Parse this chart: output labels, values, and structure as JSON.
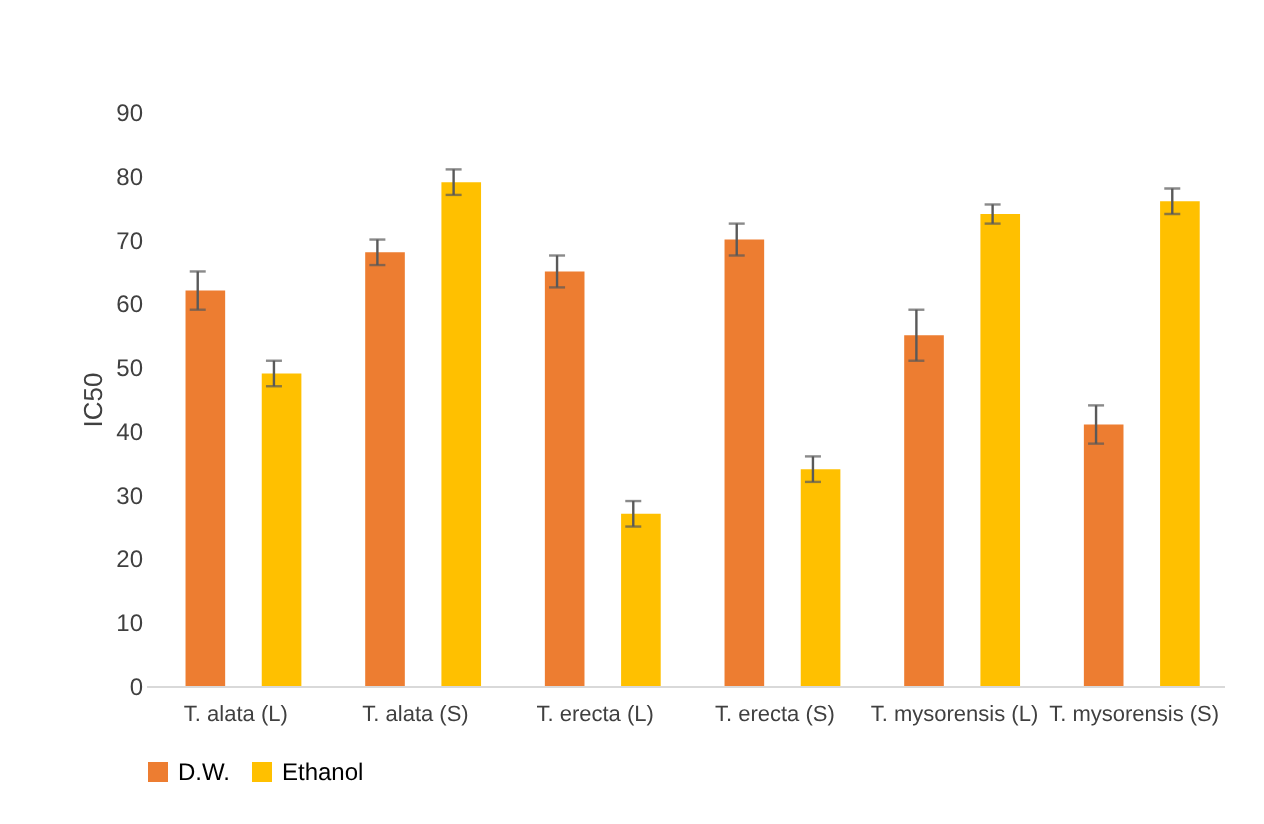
{
  "chart_data": {
    "type": "bar",
    "ylabel": "IC50",
    "categories": [
      "T. alata (L)",
      "T. alata (S)",
      "T. erecta (L)",
      "T. erecta (S)",
      "T. mysorensis (L)",
      "T. mysorensis (S)"
    ],
    "series": [
      {
        "name": "D.W.",
        "color": "#ed7d31",
        "values": [
          62,
          68,
          65,
          70,
          55,
          41
        ],
        "errors": [
          3,
          2,
          2.5,
          2.5,
          4,
          3
        ]
      },
      {
        "name": "Ethanol",
        "color": "#ffc000",
        "values": [
          49,
          79,
          27,
          34,
          74,
          76
        ],
        "errors": [
          2,
          2,
          2,
          2,
          1.5,
          2
        ]
      }
    ],
    "ylim": [
      0,
      90
    ],
    "yticks": [
      0,
      10,
      20,
      30,
      40,
      50,
      60,
      70,
      80,
      90
    ],
    "grid": false,
    "legend": "bottom"
  }
}
